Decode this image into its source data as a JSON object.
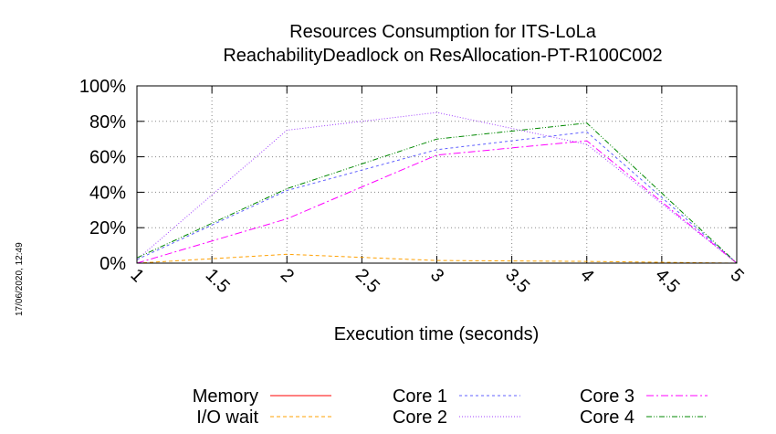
{
  "stamp": "17/06/2020, 12:49",
  "chart_data": {
    "type": "line",
    "title": [
      "Resources Consumption for ITS-LoLa",
      "ReachabilityDeadlock on ResAllocation-PT-R100C002"
    ],
    "xlabel": "Execution time (seconds)",
    "ylabel": "",
    "xlim": [
      1,
      5
    ],
    "ylim": [
      0,
      100
    ],
    "x_ticks": [
      1,
      1.5,
      2,
      2.5,
      3,
      3.5,
      4,
      4.5,
      5
    ],
    "x_tick_labels": [
      "1",
      "1.5",
      "2",
      "2.5",
      "3",
      "3.5",
      "4",
      "4.5",
      "5"
    ],
    "y_ticks": [
      0,
      20,
      40,
      60,
      80,
      100
    ],
    "y_tick_labels": [
      "0%",
      "20%",
      "40%",
      "60%",
      "80%",
      "100%"
    ],
    "grid": true,
    "legend_position": "bottom",
    "series": [
      {
        "name": "Memory",
        "color": "#ff0000",
        "dash": "none",
        "x": [
          1,
          2,
          3,
          4,
          5
        ],
        "y": [
          0,
          0,
          0,
          0,
          0
        ]
      },
      {
        "name": "I/O wait",
        "color": "#ffa000",
        "dash": "4 3",
        "x": [
          1,
          2,
          3,
          4,
          5
        ],
        "y": [
          0,
          5,
          1.5,
          1,
          0
        ]
      },
      {
        "name": "Core 1",
        "color": "#6060ff",
        "dash": "3 3",
        "x": [
          1,
          2,
          3,
          4,
          5
        ],
        "y": [
          2,
          41,
          64,
          74,
          0
        ]
      },
      {
        "name": "Core 2",
        "color": "#a040ff",
        "dash": "1 2",
        "x": [
          1,
          2,
          3,
          4,
          5
        ],
        "y": [
          2,
          75,
          85,
          67,
          0
        ]
      },
      {
        "name": "Core 3",
        "color": "#ff00ff",
        "dash": "8 3 2 3",
        "x": [
          1,
          2,
          3,
          4,
          5
        ],
        "y": [
          0,
          25,
          61,
          69,
          0
        ]
      },
      {
        "name": "Core 4",
        "color": "#008800",
        "dash": "6 2 1 2 1 2",
        "x": [
          1,
          2,
          3,
          4,
          5
        ],
        "y": [
          3,
          42,
          70,
          79,
          0
        ]
      }
    ]
  }
}
